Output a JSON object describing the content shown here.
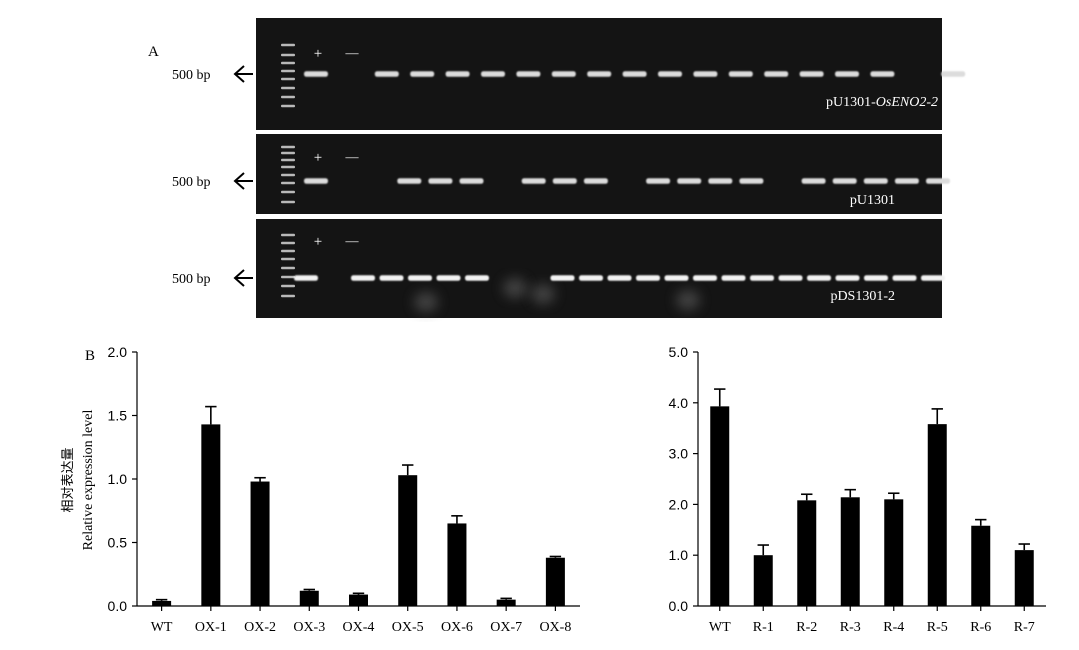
{
  "panel_a": {
    "label": "A",
    "gels": [
      {
        "marker_label": "500 bp",
        "plus_label": "+",
        "minus_label": "—",
        "construct": {
          "prefix": "pU1301-",
          "italic": "OsENO2-2"
        },
        "lanes": [
          1,
          0,
          1,
          1,
          1,
          1,
          1,
          1,
          1,
          1,
          1,
          1,
          1,
          1,
          1,
          1,
          1,
          0,
          1
        ]
      },
      {
        "marker_label": "500 bp",
        "plus_label": "+",
        "minus_label": "—",
        "construct": {
          "prefix": "pU1301",
          "italic": ""
        },
        "lanes": [
          1,
          0,
          0,
          1,
          1,
          1,
          0,
          1,
          1,
          1,
          0,
          1,
          1,
          1,
          1,
          0,
          1,
          1,
          1,
          1,
          1
        ]
      },
      {
        "marker_label": "500 bp",
        "plus_label": "+",
        "minus_label": "—",
        "construct": {
          "prefix": "pDS1301-2",
          "italic": ""
        },
        "lanes": [
          1,
          0,
          1,
          1,
          1,
          1,
          1,
          0,
          0,
          1,
          1,
          1,
          1,
          1,
          1,
          1,
          1,
          1,
          1,
          1,
          1,
          1,
          1
        ]
      }
    ]
  },
  "panel_b": {
    "label": "B"
  },
  "chart_data": [
    {
      "type": "bar",
      "ylabel_cn": "相对表达量",
      "ylabel": "Relative expression level",
      "categories": [
        "WT",
        "OX-1",
        "OX-2",
        "OX-3",
        "OX-4",
        "OX-5",
        "OX-6",
        "OX-7",
        "OX-8"
      ],
      "values": [
        0.04,
        1.43,
        0.98,
        0.12,
        0.09,
        1.03,
        0.65,
        0.05,
        0.38
      ],
      "errors": [
        0.01,
        0.14,
        0.03,
        0.01,
        0.01,
        0.08,
        0.06,
        0.01,
        0.01
      ],
      "ylim": [
        0,
        2.0
      ],
      "yticks": [
        "0.0",
        "0.5",
        "1.0",
        "1.5",
        "2.0"
      ],
      "grid": false
    },
    {
      "type": "bar",
      "categories": [
        "WT",
        "R-1",
        "R-2",
        "R-3",
        "R-4",
        "R-5",
        "R-6",
        "R-7"
      ],
      "values": [
        3.93,
        1.0,
        2.08,
        2.14,
        2.1,
        3.58,
        1.58,
        1.1
      ],
      "errors": [
        0.34,
        0.2,
        0.12,
        0.15,
        0.12,
        0.3,
        0.12,
        0.12
      ],
      "ylim": [
        0,
        5.0
      ],
      "yticks": [
        "0.0",
        "1.0",
        "2.0",
        "3.0",
        "4.0",
        "5.0"
      ],
      "grid": false
    }
  ]
}
